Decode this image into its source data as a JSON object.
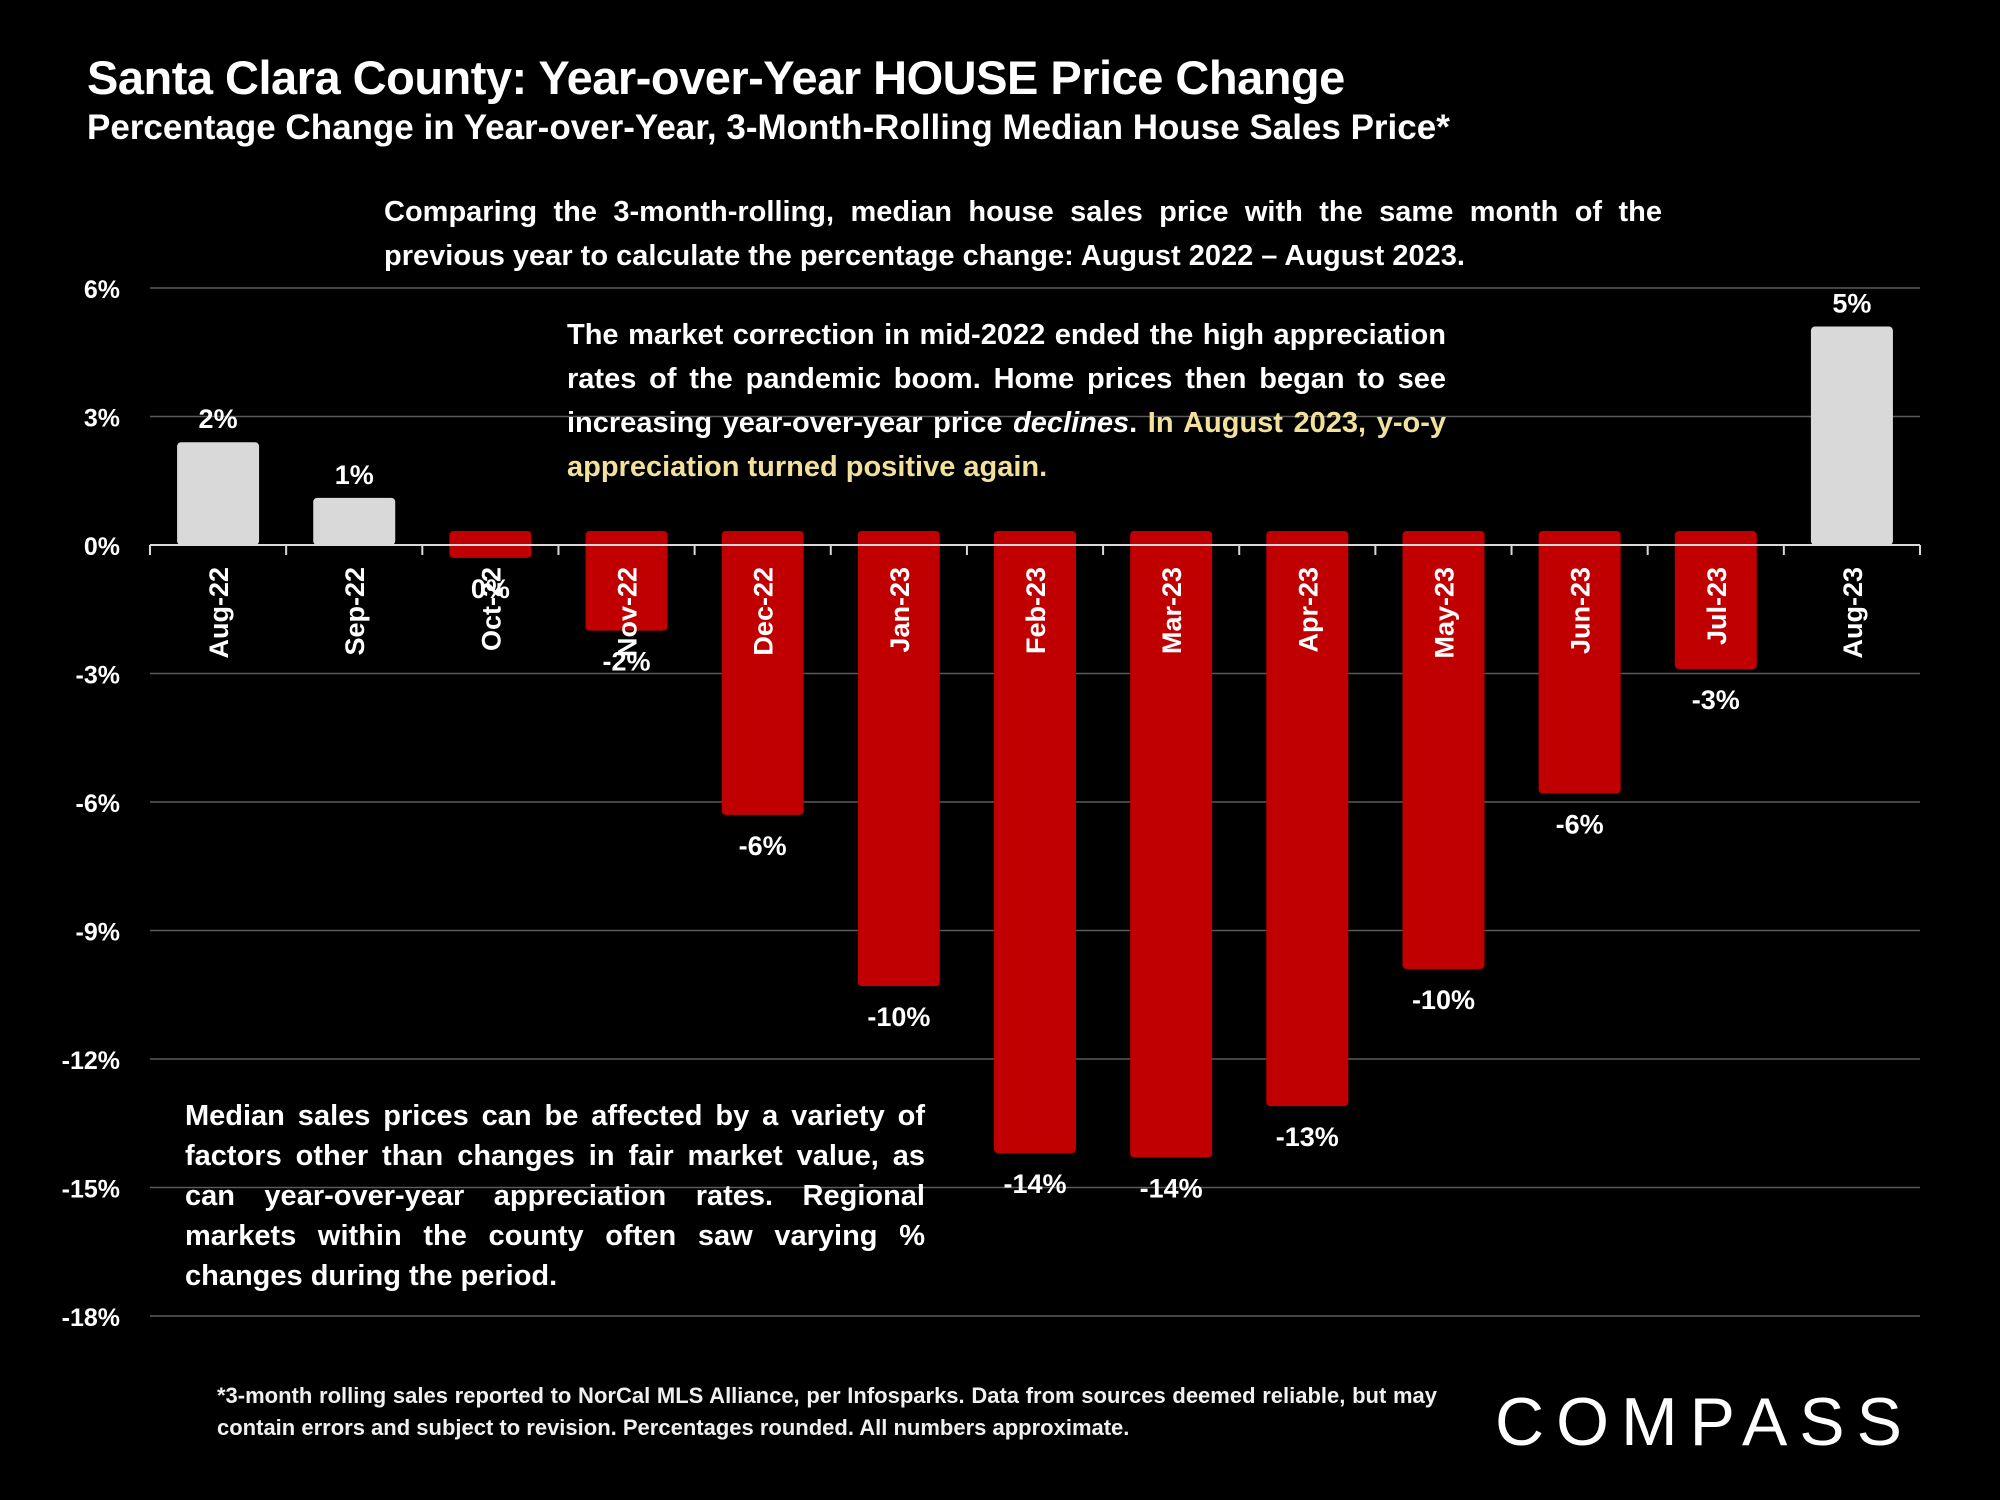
{
  "header": {
    "title": "Santa Clara County: Year-over-Year HOUSE Price Change",
    "subtitle": "Percentage Change in Year-over-Year, 3-Month-Rolling Median House Sales Price*"
  },
  "notes": {
    "comparison": "Comparing the 3-month-rolling, median house sales price with the same month of the previous year to calculate the percentage change: August 2022 – August 2023.",
    "market_a": "The market correction in mid-2022 ended the high appreciation rates of the pandemic boom. Home prices then began to see increasing year-over-year price ",
    "market_em": "declines",
    "market_b": ".",
    "market_highlight": "In August 2023, y-o-y appreciation turned positive again.",
    "median": "Median sales prices can be affected by a variety of factors other than changes in fair market value, as can year-over-year appreciation rates. Regional markets within the county often saw varying % changes during the period."
  },
  "footnote": "*3-month rolling sales reported to NorCal MLS Alliance, per Infosparks. Data from sources deemed reliable, but may contain errors and subject to revision. Percentages rounded. All numbers approximate.",
  "logo": "COMPASS",
  "chart_data": {
    "type": "bar",
    "categories": [
      "Aug-22",
      "Sep-22",
      "Oct-22",
      "Nov-22",
      "Dec-22",
      "Jan-23",
      "Feb-23",
      "Mar-23",
      "Apr-23",
      "May-23",
      "Jun-23",
      "Jul-23",
      "Aug-23"
    ],
    "values": [
      2.4,
      1.1,
      -0.3,
      -2.0,
      -6.3,
      -10.3,
      -14.2,
      -14.3,
      -13.1,
      -9.9,
      -5.8,
      -2.9,
      5.1
    ],
    "data_labels": [
      "2%",
      "1%",
      "0%",
      "-2%",
      "-6%",
      "-10%",
      "-14%",
      "-14%",
      "-13%",
      "-10%",
      "-6%",
      "-3%",
      "5%"
    ],
    "ylim": [
      -18,
      6
    ],
    "yticks": [
      6,
      3,
      0,
      -3,
      -6,
      -9,
      -12,
      -15,
      -18
    ],
    "ytick_labels": [
      "6%",
      "3%",
      "0%",
      "-3%",
      "-6%",
      "-9%",
      "-12%",
      "-15%",
      "-18%"
    ],
    "grid": true,
    "colors": {
      "positive": "#d9d9d9",
      "negative": "#c00000",
      "grid": "#5a5a5a",
      "axis": "#d9d9d9"
    }
  }
}
